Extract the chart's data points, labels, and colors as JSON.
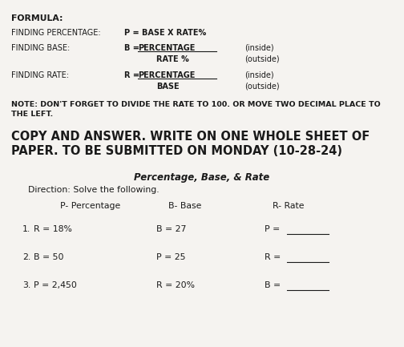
{
  "bg_color": "#f5f3f0",
  "text_color": "#1a1a1a",
  "figsize": [
    5.04,
    4.33
  ],
  "dpi": 100,
  "formula_label": "FORMULA:",
  "fp_label": "FINDING PERCENTAGE:",
  "fp_formula": "P = BASE X RATE%",
  "fb_label": "FINDING BASE:",
  "fb_top": "B = ",
  "fb_top_ul": "PERCENTAGE",
  "fb_bot": "RATE %",
  "fb_inside": "(inside)",
  "fb_outside": "(outside)",
  "fr_label": "FINDING RATE:",
  "fr_top": "R = ",
  "fr_top_ul": "PERCENTAGE",
  "fr_bot": "BASE",
  "fr_inside": "(inside)",
  "fr_outside": "(outside)",
  "note_line1": "NOTE: DON'T FORGET TO DIVIDE THE RATE TO 100. OR MOVE TWO DECIMAL PLACE TO",
  "note_line2": "THE LEFT.",
  "copy_line1": "COPY AND ANSWER. WRITE ON ONE WHOLE SHEET OF",
  "copy_line2": "PAPER. TO BE SUBMITTED ON MONDAY (10-28-24)",
  "subtitle": "Percentage, Base, & Rate",
  "direction": "Direction: Solve the following.",
  "hdr_p": "P- Percentage",
  "hdr_b": "B- Base",
  "hdr_r": "R- Rate",
  "items": [
    {
      "n": "1.",
      "c1": "R = 18%",
      "c2": "B = 27",
      "c3": "P = "
    },
    {
      "n": "2.",
      "c1": "B = 50",
      "c2": "P = 25",
      "c3": "R = "
    },
    {
      "n": "3.",
      "c1": "P = 2,450",
      "c2": "R = 20%",
      "c3": "B = "
    }
  ]
}
